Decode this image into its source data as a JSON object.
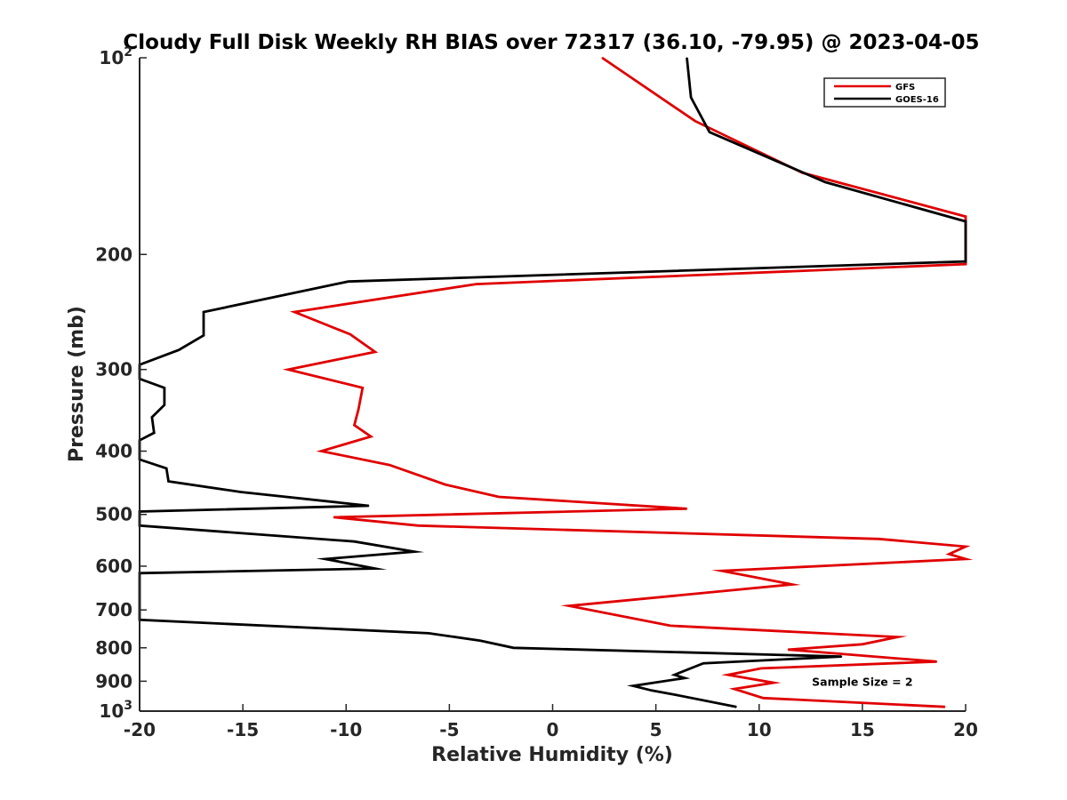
{
  "chart_data": {
    "type": "line",
    "title": "Cloudy Full Disk Weekly RH BIAS over 72317 (36.10, -79.95) @ 2023-04-05",
    "xlabel": "Relative Humidity (%)",
    "ylabel": "Pressure (mb)",
    "xlim": [
      -20,
      20
    ],
    "ylim": [
      100,
      1000
    ],
    "y_scale": "log",
    "y_reversed": true,
    "grid": false,
    "legend_position": "top-right",
    "x_ticks": [
      -20,
      -15,
      -10,
      -5,
      0,
      5,
      10,
      15,
      20
    ],
    "x_tick_labels": [
      "-20",
      "-15",
      "-10",
      "-5",
      "0",
      "5",
      "10",
      "15",
      "20"
    ],
    "y_ticks": [
      100,
      200,
      300,
      400,
      500,
      600,
      700,
      800,
      900,
      1000
    ],
    "y_tick_labels": [
      {
        "base": "10",
        "sup": "2"
      },
      {
        "base": "200",
        "sup": ""
      },
      {
        "base": "300",
        "sup": ""
      },
      {
        "base": "400",
        "sup": ""
      },
      {
        "base": "500",
        "sup": ""
      },
      {
        "base": "600",
        "sup": ""
      },
      {
        "base": "700",
        "sup": ""
      },
      {
        "base": "800",
        "sup": ""
      },
      {
        "base": "900",
        "sup": ""
      },
      {
        "base": "10",
        "sup": "3"
      }
    ],
    "series": [
      {
        "name": "GFS",
        "color": "#e00000",
        "points": [
          [
            2.4,
            100
          ],
          [
            6.9,
            125
          ],
          [
            12.1,
            150
          ],
          [
            20,
            175
          ],
          [
            20,
            207
          ],
          [
            -3.7,
            222
          ],
          [
            -12.5,
            245
          ],
          [
            -9.8,
            265
          ],
          [
            -8.6,
            282
          ],
          [
            -12.8,
            300
          ],
          [
            -9.2,
            320
          ],
          [
            -9.4,
            345
          ],
          [
            -9.6,
            365
          ],
          [
            -8.8,
            380
          ],
          [
            -11.2,
            400
          ],
          [
            -7.9,
            420
          ],
          [
            -5.2,
            450
          ],
          [
            -2.6,
            470
          ],
          [
            6.5,
            490
          ],
          [
            -10.6,
            505
          ],
          [
            -6.5,
            520
          ],
          [
            15.8,
            545
          ],
          [
            20,
            560
          ],
          [
            19.2,
            575
          ],
          [
            20,
            585
          ],
          [
            8.2,
            610
          ],
          [
            11.6,
            640
          ],
          [
            0.8,
            690
          ],
          [
            5.7,
            740
          ],
          [
            16.7,
            770
          ],
          [
            15.0,
            790
          ],
          [
            11.4,
            805
          ],
          [
            18.6,
            840
          ],
          [
            10.1,
            860
          ],
          [
            8.5,
            880
          ],
          [
            10.7,
            905
          ],
          [
            8.8,
            925
          ],
          [
            10.2,
            955
          ],
          [
            19.0,
            985
          ]
        ]
      },
      {
        "name": "GOES-16",
        "color": "#000000",
        "points": [
          [
            6.5,
            100
          ],
          [
            6.7,
            115
          ],
          [
            7.6,
            130
          ],
          [
            13.2,
            155
          ],
          [
            20,
            178
          ],
          [
            20,
            205
          ],
          [
            -9.9,
            220
          ],
          [
            -16.9,
            245
          ],
          [
            -16.9,
            266
          ],
          [
            -18.1,
            280
          ],
          [
            -20,
            295
          ],
          [
            -20,
            310
          ],
          [
            -18.8,
            320
          ],
          [
            -18.8,
            340
          ],
          [
            -19.4,
            355
          ],
          [
            -19.3,
            375
          ],
          [
            -20,
            385
          ],
          [
            -20,
            412
          ],
          [
            -18.7,
            425
          ],
          [
            -18.6,
            445
          ],
          [
            -15.1,
            462
          ],
          [
            -8.9,
            485
          ],
          [
            -20,
            495
          ],
          [
            -20,
            520
          ],
          [
            -9.6,
            550
          ],
          [
            -6.7,
            570
          ],
          [
            -11.0,
            585
          ],
          [
            -8.6,
            605
          ],
          [
            -20,
            615
          ],
          [
            -20,
            725
          ],
          [
            -6.0,
            760
          ],
          [
            -3.5,
            780
          ],
          [
            -1.9,
            800
          ],
          [
            14.0,
            825
          ],
          [
            7.3,
            845
          ],
          [
            5.9,
            880
          ],
          [
            6.4,
            890
          ],
          [
            3.9,
            915
          ],
          [
            4.8,
            930
          ],
          [
            6.0,
            945
          ],
          [
            8.9,
            985
          ]
        ]
      }
    ],
    "annotations": [
      {
        "text": "Sample Size = 2",
        "x": 15,
        "y": 900
      }
    ]
  }
}
